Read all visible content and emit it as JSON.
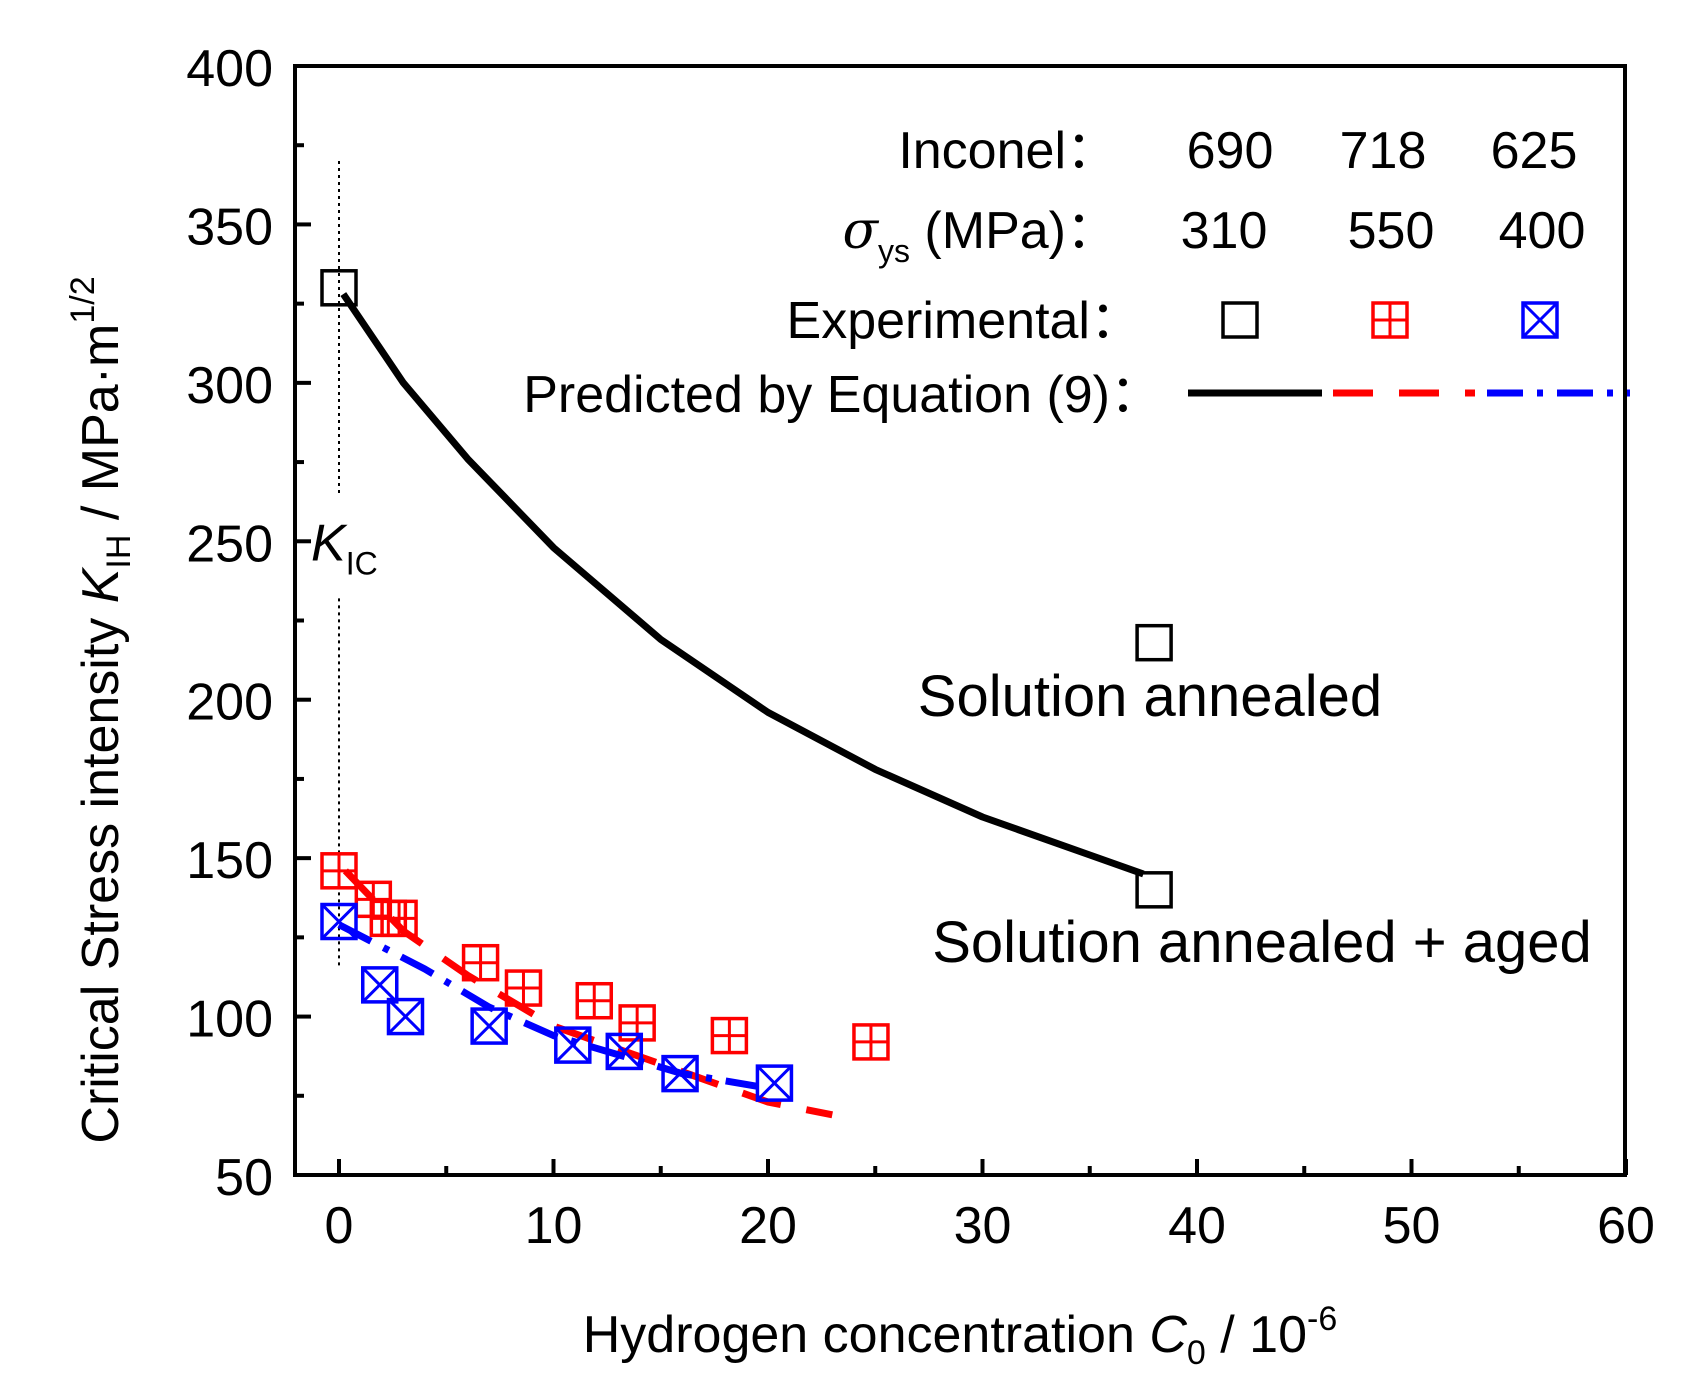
{
  "chart_data": {
    "type": "scatter",
    "xlabel": {
      "main": "Hydrogen concentration ",
      "var": "C",
      "sub": "0",
      "unit": " / 10",
      "exp": "-6"
    },
    "ylabel": {
      "main": "Critical Stress intensity ",
      "var": "K",
      "sub": "IH",
      "unit": " / MPa·m",
      "exp": "1/2"
    },
    "xlim": [
      -2,
      60
    ],
    "ylim": [
      50,
      400
    ],
    "xticks": [
      0,
      10,
      20,
      30,
      40,
      50,
      60
    ],
    "yticks": [
      50,
      100,
      150,
      200,
      250,
      300,
      350,
      400
    ],
    "kic_line": {
      "x": 0,
      "y_from": 115,
      "y_to": 370,
      "label_var": "K",
      "label_sub": "IC"
    },
    "legend": {
      "row1_label": "Inconel：",
      "row1_values": [
        "690",
        "718",
        "625"
      ],
      "row2_sigma": "σ",
      "row2_sub": "ys",
      "row2_label": " (MPa)：",
      "row2_values": [
        "310",
        "550",
        "400"
      ],
      "row3_label": "Experimental：",
      "row4_label": "Predicted by Equation (9)："
    },
    "annotations": [
      "Solution annealed",
      "Solution annealed + aged"
    ],
    "series": [
      {
        "name": "690",
        "color": "#000000",
        "marker": "square",
        "points": [
          [
            0,
            330
          ],
          [
            38,
            218
          ],
          [
            38,
            140
          ]
        ],
        "curve": [
          [
            0.2,
            328
          ],
          [
            3,
            300
          ],
          [
            6,
            276
          ],
          [
            10,
            248
          ],
          [
            15,
            219
          ],
          [
            20,
            196
          ],
          [
            25,
            178
          ],
          [
            30,
            163
          ],
          [
            35,
            151
          ],
          [
            37.5,
            145
          ]
        ],
        "curve_style": "solid"
      },
      {
        "name": "718",
        "color": "#ff0000",
        "marker": "square-plus",
        "points": [
          [
            0,
            146
          ],
          [
            1.6,
            137
          ],
          [
            2.3,
            131
          ],
          [
            2.8,
            131
          ],
          [
            6.6,
            117
          ],
          [
            8.6,
            109
          ],
          [
            11.9,
            105
          ],
          [
            13.9,
            98
          ],
          [
            18.2,
            94
          ],
          [
            24.8,
            92
          ]
        ],
        "curve": [
          [
            0.3,
            146
          ],
          [
            3,
            127
          ],
          [
            6,
            113
          ],
          [
            10,
            97
          ],
          [
            15,
            85
          ],
          [
            20,
            73
          ],
          [
            23,
            69
          ]
        ],
        "curve_style": "dash"
      },
      {
        "name": "625",
        "color": "#0000ff",
        "marker": "square-x",
        "points": [
          [
            0,
            130
          ],
          [
            1.9,
            110
          ],
          [
            3.1,
            100
          ],
          [
            7.0,
            97
          ],
          [
            10.9,
            91
          ],
          [
            13.3,
            89
          ],
          [
            15.9,
            82
          ],
          [
            20.3,
            79
          ]
        ],
        "curve": [
          [
            0,
            129
          ],
          [
            4,
            115
          ],
          [
            7,
            103
          ],
          [
            10,
            94
          ],
          [
            13,
            88
          ],
          [
            16,
            82
          ],
          [
            19.5,
            78
          ]
        ],
        "curve_style": "dashdot"
      }
    ]
  }
}
